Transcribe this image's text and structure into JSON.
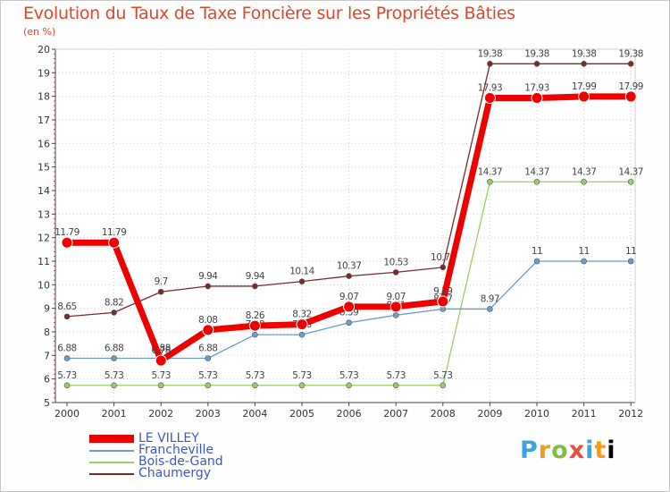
{
  "chart_data": {
    "type": "line",
    "title": "Evolution du Taux de Taxe Foncière sur les Propriétés Bâties",
    "unit_label": "(en %)",
    "x": [
      "2000",
      "2001",
      "2002",
      "2003",
      "2004",
      "2005",
      "2006",
      "2007",
      "2008",
      "2009",
      "2010",
      "2011",
      "2012"
    ],
    "ylim": [
      5,
      20
    ],
    "yticks": [
      "5",
      "6",
      "7",
      "8",
      "9",
      "10",
      "11",
      "12",
      "13",
      "14",
      "15",
      "16",
      "17",
      "18",
      "19",
      "20"
    ],
    "series": [
      {
        "name": "Chaumergy",
        "color": "#7a2a2a",
        "values": [
          8.65,
          8.82,
          9.7,
          9.94,
          9.94,
          10.14,
          10.37,
          10.53,
          10.74,
          19.38,
          19.38,
          19.38,
          19.38
        ],
        "labels": [
          "8.65",
          "8.82",
          "9.7",
          "9.94",
          "9.94",
          "10.14",
          "10.37",
          "10.53",
          "10.74",
          "19.38",
          "19.38",
          "19.38",
          "19.38"
        ]
      },
      {
        "name": "Bois-de-Gand",
        "color": "#9acd6a",
        "values": [
          5.73,
          5.73,
          5.73,
          5.73,
          5.73,
          5.73,
          5.73,
          5.73,
          5.73,
          14.37,
          14.37,
          14.37,
          14.37
        ],
        "labels": [
          "5.73",
          "5.73",
          "5.73",
          "5.73",
          "5.73",
          "5.73",
          "5.73",
          "5.73",
          "5.73",
          "14.37",
          "14.37",
          "14.37",
          "14.37"
        ]
      },
      {
        "name": "Francheville",
        "color": "#6d9cc7",
        "values": [
          6.88,
          6.88,
          6.88,
          6.88,
          7.88,
          7.88,
          8.39,
          8.71,
          8.97,
          8.97,
          11,
          11,
          11
        ],
        "labels": [
          "6.88",
          "6.88",
          "6.88",
          "6.88",
          "7.88",
          "7.88",
          "8.39",
          "8.71",
          "8.97",
          "8.97",
          "11",
          "11",
          "11"
        ]
      },
      {
        "name": "LE VILLEY",
        "color": "#ee0000",
        "values": [
          11.79,
          11.79,
          6.78,
          8.08,
          8.26,
          8.32,
          9.07,
          9.07,
          9.29,
          17.93,
          17.93,
          17.99,
          17.99
        ],
        "labels": [
          "11.79",
          "11.79",
          "6.78",
          "8.08",
          "8.26",
          "8.32",
          "9.07",
          "9.07",
          "9.29",
          "17.93",
          "17.93",
          "17.99",
          "17.99"
        ]
      }
    ]
  },
  "legend": [
    {
      "name": "LE VILLEY",
      "color": "#ee0000"
    },
    {
      "name": "Francheville",
      "color": "#6d9cc7"
    },
    {
      "name": "Bois-de-Gand",
      "color": "#9acd6a"
    },
    {
      "name": "Chaumergy",
      "color": "#7a2a2a"
    }
  ],
  "logo": {
    "letters": [
      "P",
      "r",
      "o",
      "x",
      "i",
      "t",
      "i"
    ],
    "text": "Proxiti"
  }
}
